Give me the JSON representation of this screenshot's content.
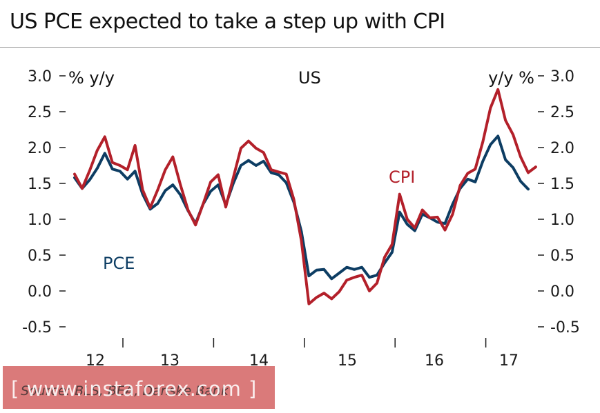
{
  "header": {
    "title": "US PCE expected to take a step up with CPI"
  },
  "chart_data": {
    "type": "line",
    "title": "US",
    "ylabel_left": "% y/y",
    "ylabel_right": "y/y %",
    "ylim": [
      -0.5,
      3.0
    ],
    "yticks": [
      "3.0",
      "2.5",
      "2.0",
      "1.5",
      "1.0",
      "0.5",
      "0.0",
      "-0.5"
    ],
    "ytick_values": [
      3.0,
      2.5,
      2.0,
      1.5,
      1.0,
      0.5,
      0.0,
      -0.5
    ],
    "year_labels": [
      "12",
      "13",
      "14",
      "15",
      "16",
      "17"
    ],
    "x_start": "2011-10",
    "x_frequency": "monthly",
    "series": [
      {
        "name": "PCE",
        "color": "#0d3d63",
        "values": [
          1.58,
          1.43,
          1.55,
          1.71,
          1.92,
          1.7,
          1.67,
          1.56,
          1.67,
          1.35,
          1.14,
          1.22,
          1.4,
          1.48,
          1.34,
          1.12,
          0.94,
          1.21,
          1.39,
          1.48,
          1.2,
          1.5,
          1.75,
          1.82,
          1.75,
          1.81,
          1.65,
          1.62,
          1.51,
          1.24,
          0.83,
          0.21,
          0.29,
          0.3,
          0.17,
          0.25,
          0.33,
          0.3,
          0.33,
          0.19,
          0.22,
          0.39,
          0.54,
          1.1,
          0.93,
          0.84,
          1.07,
          1.02,
          0.96,
          0.94,
          1.21,
          1.43,
          1.56,
          1.52,
          1.81,
          2.04,
          2.16,
          1.83,
          1.72,
          1.53,
          1.42
        ]
      },
      {
        "name": "CPI",
        "color": "#b3202a",
        "values": [
          1.63,
          1.43,
          1.68,
          1.96,
          2.15,
          1.79,
          1.75,
          1.69,
          2.03,
          1.41,
          1.16,
          1.41,
          1.69,
          1.87,
          1.48,
          1.13,
          0.92,
          1.21,
          1.52,
          1.62,
          1.17,
          1.58,
          1.99,
          2.09,
          1.99,
          1.93,
          1.69,
          1.66,
          1.63,
          1.28,
          0.7,
          -0.18,
          -0.09,
          -0.03,
          -0.11,
          -0.01,
          0.15,
          0.19,
          0.22,
          0.0,
          0.11,
          0.47,
          0.65,
          1.35,
          1.0,
          0.88,
          1.13,
          1.02,
          1.03,
          0.85,
          1.07,
          1.47,
          1.64,
          1.7,
          2.08,
          2.55,
          2.81,
          2.38,
          2.18,
          1.87,
          1.65,
          1.73
        ]
      }
    ],
    "annotations": [
      "PCE",
      "CPI"
    ]
  },
  "footer": {
    "source": "Source: BLS, BEA, Danske Bank",
    "watermark": "[ www.instaforex.com ]"
  },
  "colors": {
    "pce": "#0d3d63",
    "cpi": "#b3202a",
    "axis": "#1a1a1a"
  }
}
